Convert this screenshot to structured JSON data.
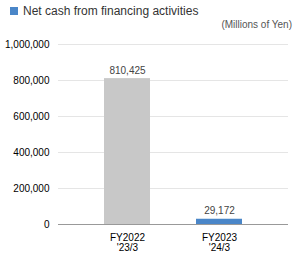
{
  "chart_data": {
    "type": "bar",
    "title": "Net cash from financing activities",
    "subtitle": "(Millions of Yen)",
    "categories": [
      "FY2022\n'23/3",
      "FY2023\n'24/3"
    ],
    "values": [
      810425,
      29172
    ],
    "value_labels": [
      "810,425",
      "29,172"
    ],
    "data_labels": true,
    "colors": [
      "#c8c8c8",
      "#4a86c8"
    ],
    "ylim": [
      0,
      1000000
    ],
    "yticks": [
      0,
      {
        "value": 200000,
        "label": "200,000"
      },
      {
        "value": 400000,
        "label": "400,000"
      },
      {
        "value": 600000,
        "label": "600,000"
      },
      {
        "value": 800000,
        "label": "800,000"
      },
      {
        "value": 1000000,
        "label": "1,000,000"
      }
    ],
    "grid": true
  }
}
